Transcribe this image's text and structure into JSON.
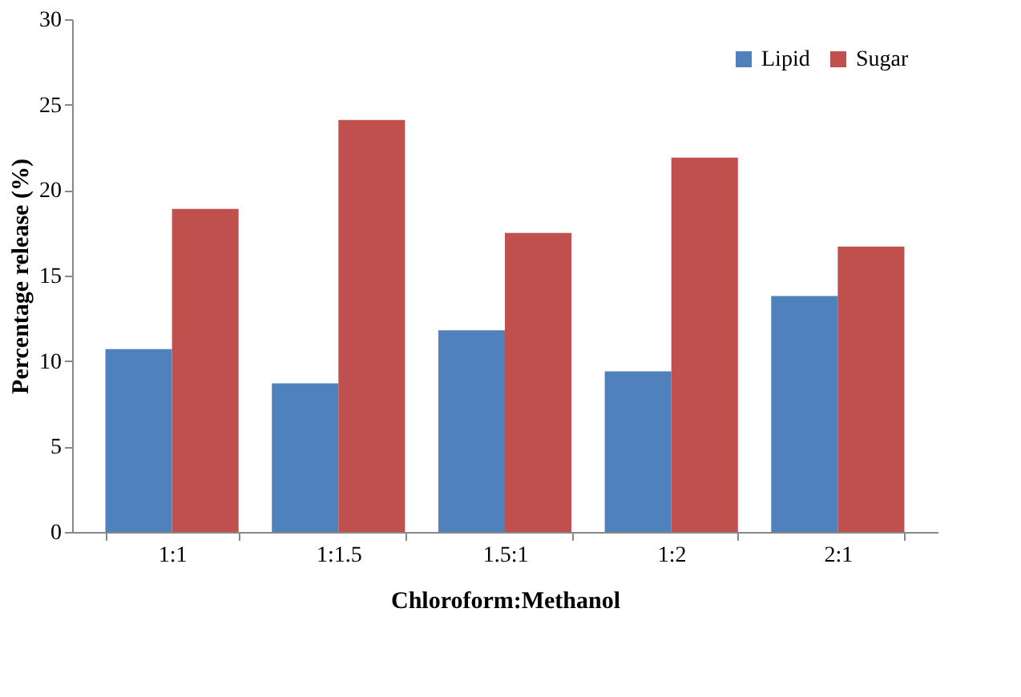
{
  "chart_data": {
    "type": "bar",
    "xlabel": "Chloroform:Methanol",
    "ylabel": "Percentage release (%)",
    "categories": [
      "1:1",
      "1:1.5",
      "1.5:1",
      "1:2",
      "2:1"
    ],
    "series": [
      {
        "name": "Lipid",
        "color": "#4f81bd",
        "values": [
          10.7,
          8.7,
          11.8,
          9.4,
          13.8
        ]
      },
      {
        "name": "Sugar",
        "color": "#c0504d",
        "values": [
          18.9,
          24.1,
          17.5,
          21.9,
          16.7
        ]
      }
    ],
    "ylim": [
      0,
      30
    ],
    "yticks": [
      0,
      5,
      10,
      15,
      20,
      25,
      30
    ],
    "grid": false,
    "legend": "top right"
  }
}
